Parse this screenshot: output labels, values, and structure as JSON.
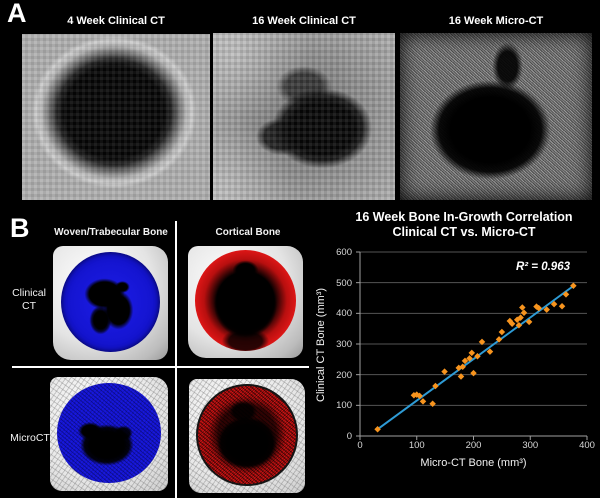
{
  "panel_a": {
    "label": "A",
    "titles": [
      "4 Week Clinical CT",
      "16 Week Clinical CT",
      "16 Week Micro-CT"
    ]
  },
  "panel_b": {
    "label": "B",
    "column_headers": [
      "Woven/Trabecular Bone",
      "Cortical Bone"
    ],
    "row_labels": [
      "Clinical CT",
      "MicroCT"
    ],
    "overlay_colors": {
      "woven_trabecular": "#1515D2",
      "cortical": "#D61616"
    }
  },
  "chart_data": {
    "type": "scatter",
    "title_lines": [
      "16 Week Bone In-Growth Correlation",
      "Clinical CT vs. Micro-CT"
    ],
    "annotation": "R² = 0.963",
    "xlabel": "Micro-CT Bone (mm³)",
    "ylabel": "Clinical CT Bone (mm³)",
    "xlim": [
      0,
      400
    ],
    "ylim": [
      0,
      600
    ],
    "xticks": [
      0,
      100,
      200,
      300,
      400
    ],
    "yticks": [
      0,
      100,
      200,
      300,
      400,
      500,
      600
    ],
    "grid": true,
    "legend": "none",
    "marker_style": "diamond",
    "marker_color": "#F7941E",
    "trendline_color": "#2E9BD5",
    "gridline_color": "#555555",
    "axis_color": "#A0A0A0",
    "trendline": {
      "x1": 31,
      "y1": 22,
      "x2": 378,
      "y2": 492
    },
    "points": [
      [
        31,
        22
      ],
      [
        95,
        133
      ],
      [
        100,
        135
      ],
      [
        105,
        131
      ],
      [
        111,
        113
      ],
      [
        128,
        105
      ],
      [
        133,
        163
      ],
      [
        149,
        210
      ],
      [
        174,
        222
      ],
      [
        178,
        194
      ],
      [
        181,
        226
      ],
      [
        185,
        245
      ],
      [
        193,
        253
      ],
      [
        197,
        271
      ],
      [
        200,
        205
      ],
      [
        207,
        260
      ],
      [
        215,
        307
      ],
      [
        229,
        275
      ],
      [
        245,
        315
      ],
      [
        250,
        339
      ],
      [
        264,
        375
      ],
      [
        268,
        366
      ],
      [
        277,
        379
      ],
      [
        280,
        361
      ],
      [
        283,
        386
      ],
      [
        286,
        419
      ],
      [
        289,
        402
      ],
      [
        298,
        372
      ],
      [
        311,
        422
      ],
      [
        315,
        417
      ],
      [
        329,
        412
      ],
      [
        342,
        430
      ],
      [
        356,
        423
      ],
      [
        363,
        462
      ],
      [
        376,
        490
      ]
    ]
  }
}
